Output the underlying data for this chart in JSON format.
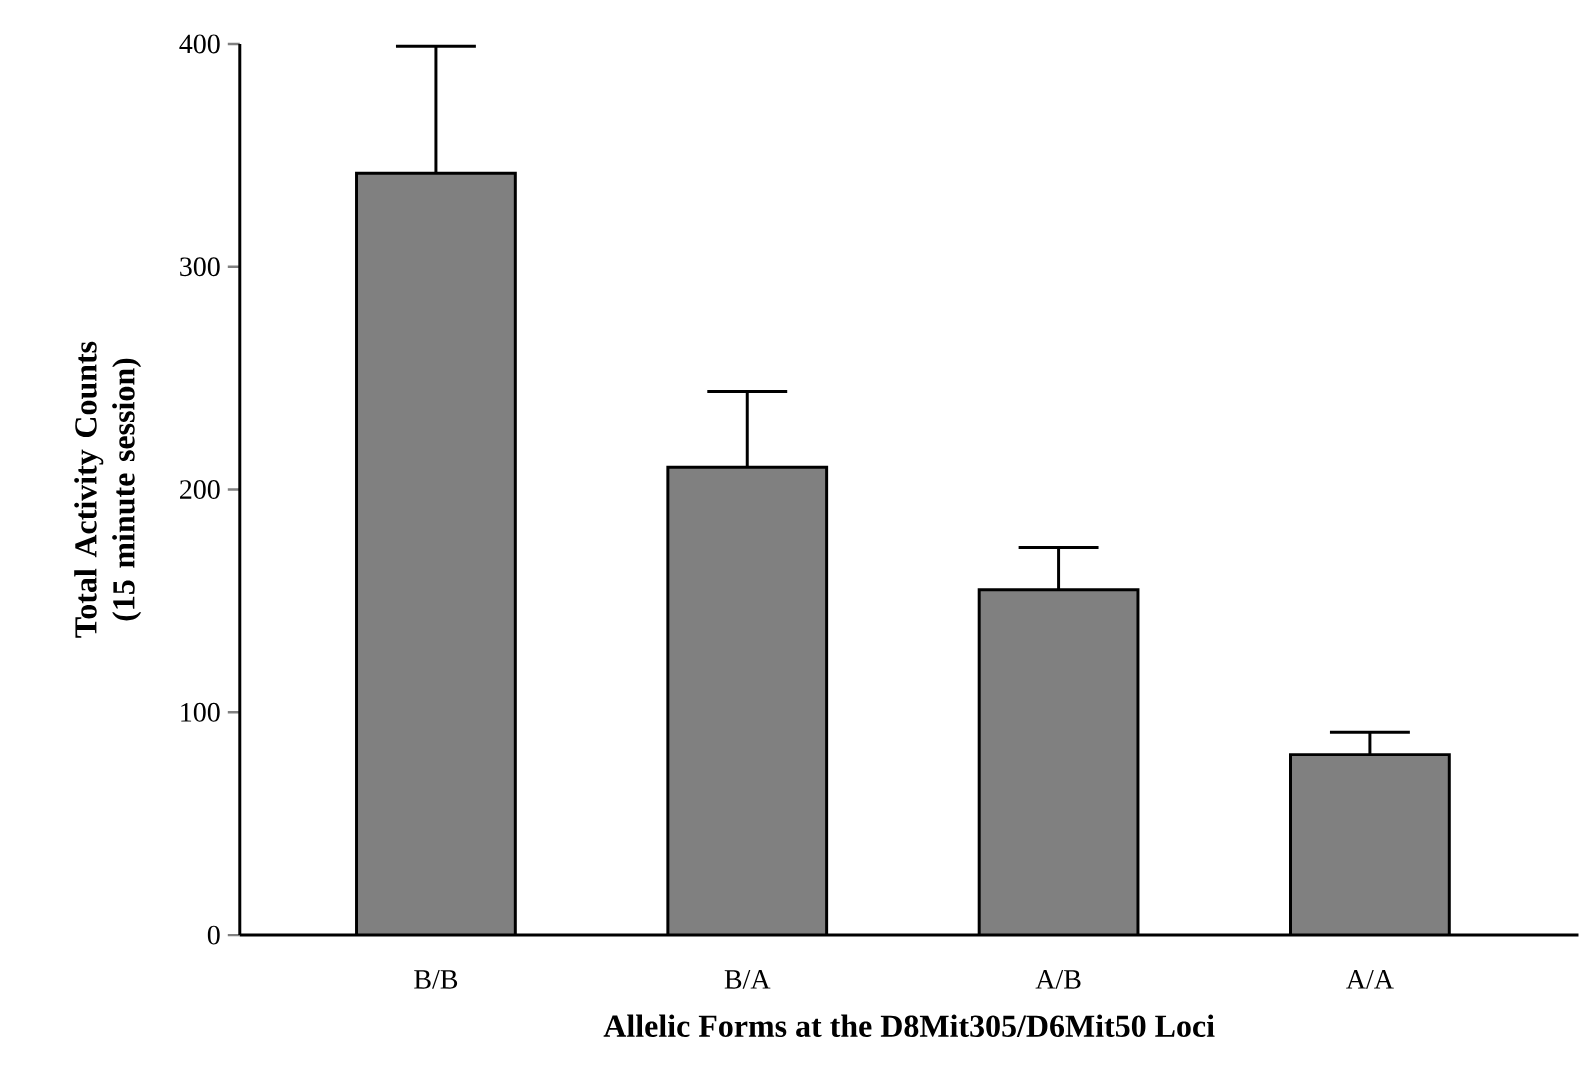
{
  "chart_data": {
    "type": "bar",
    "xlabel": "Allelic Forms at the D8Mit305/D6Mit50 Loci",
    "ylabel": "Total Activity Counts (15 minute session)",
    "categories": [
      "B/B",
      "B/A",
      "A/B",
      "A/A"
    ],
    "values": [
      342,
      210,
      155,
      81
    ],
    "errors": [
      57,
      34,
      19,
      10
    ],
    "color": "#808080",
    "ylim": [
      0,
      400
    ],
    "yticks": [
      0,
      100,
      200,
      300,
      400
    ],
    "grid": false
  }
}
